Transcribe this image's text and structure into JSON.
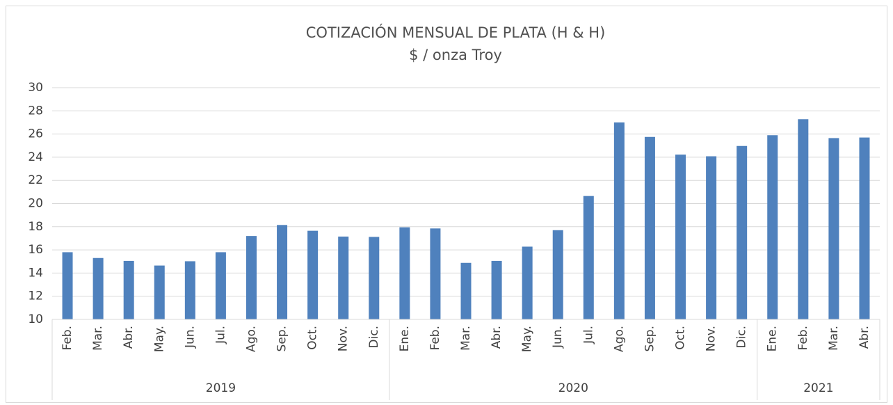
{
  "chart_data": {
    "type": "bar",
    "title": "COTIZACIÓN MENSUAL DE PLATA (H & H)",
    "subtitle": "$ / onza Troy",
    "color": "#4f81bd",
    "ylim": [
      10,
      30
    ],
    "yticks": [
      10,
      12,
      14,
      16,
      18,
      20,
      22,
      24,
      26,
      28,
      30
    ],
    "grid": true,
    "groups": [
      {
        "name": "2019",
        "categories": [
          "Feb.",
          "Mar.",
          "Abr.",
          "May.",
          "Jun.",
          "Jul.",
          "Ago.",
          "Sep.",
          "Oct.",
          "Nov.",
          "Dic."
        ],
        "values": [
          15.8,
          15.3,
          15.05,
          14.65,
          15.02,
          15.8,
          17.2,
          18.15,
          17.65,
          17.15,
          17.12
        ]
      },
      {
        "name": "2020",
        "categories": [
          "Ene.",
          "Feb.",
          "Mar.",
          "Abr.",
          "May.",
          "Jun.",
          "Jul.",
          "Ago.",
          "Sep.",
          "Oct.",
          "Nov.",
          "Dic."
        ],
        "values": [
          17.95,
          17.85,
          14.88,
          15.05,
          16.28,
          17.7,
          20.65,
          27.0,
          25.75,
          24.22,
          24.08,
          24.97
        ]
      },
      {
        "name": "2021",
        "categories": [
          "Ene.",
          "Feb.",
          "Mar.",
          "Abr."
        ],
        "values": [
          25.9,
          27.28,
          25.65,
          25.7
        ]
      }
    ]
  }
}
